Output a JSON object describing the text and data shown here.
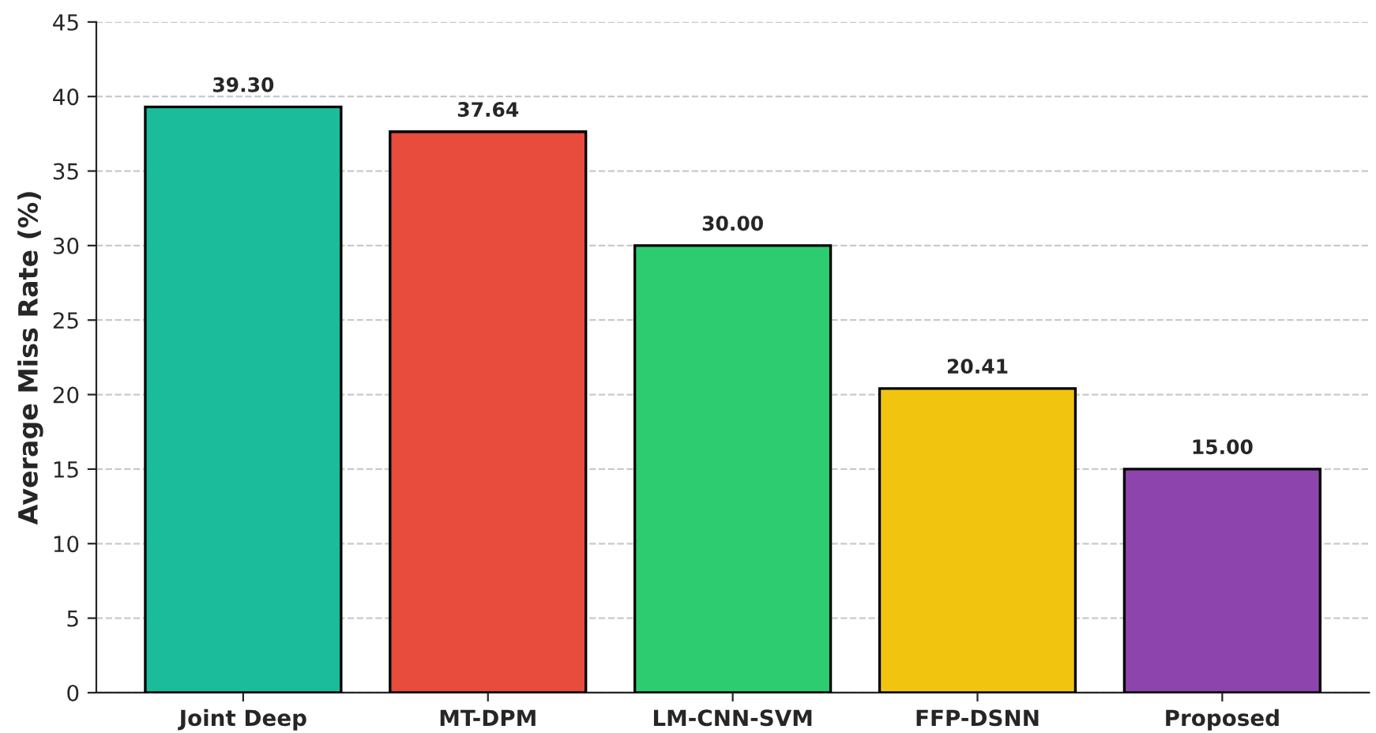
{
  "chart_data": {
    "type": "bar",
    "ylabel": "Average Miss Rate (%)",
    "categories": [
      "Joint Deep",
      "MT-DPM",
      "LM-CNN-SVM",
      "FFP-DSNN",
      "Proposed"
    ],
    "values": [
      39.3,
      37.64,
      30.0,
      20.41,
      15.0
    ],
    "colors": [
      "#1abc9c",
      "#e74c3c",
      "#2ecc71",
      "#f1c40f",
      "#8e44ad"
    ],
    "value_labels": [
      "39.30",
      "37.64",
      "30.00",
      "20.41",
      "15.00"
    ],
    "ylim": [
      0,
      45
    ],
    "yticks": [
      0,
      5,
      10,
      15,
      20,
      25,
      30,
      35,
      40,
      45
    ],
    "grid": "y"
  }
}
